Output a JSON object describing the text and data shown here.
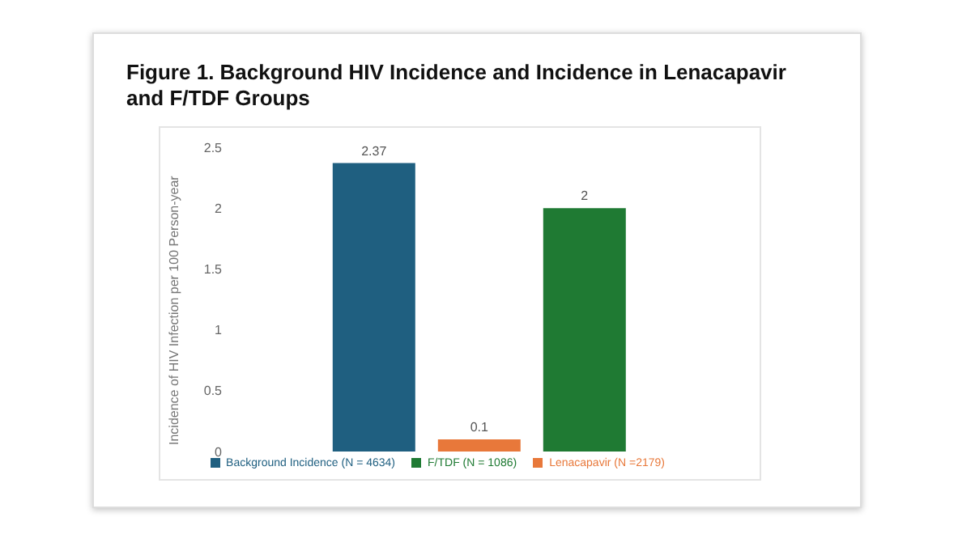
{
  "chart_data": {
    "type": "bar",
    "title": "Figure 1. Background HIV Incidence and Incidence in Lenacapavir and F/TDF Groups",
    "ylabel": "Incidence of HIV Infection per 100 Person-year",
    "categories": [
      null
    ],
    "series": [
      {
        "name": "Background Incidence (N = 4634)",
        "color": "#1f5f80",
        "values": [
          2.37
        ]
      },
      {
        "name": "Lenacapavir (N =2179)",
        "color": "#e8783a",
        "values": [
          0.1
        ]
      },
      {
        "name": "F/TDF (N = 1086)",
        "color": "#1f7a33",
        "values": [
          2
        ]
      }
    ],
    "ylim": [
      0,
      2.5
    ],
    "yticks": [
      0,
      0.5,
      1,
      1.5,
      2,
      2.5
    ],
    "data_labels": true,
    "grid": false,
    "legend": "bottom"
  }
}
